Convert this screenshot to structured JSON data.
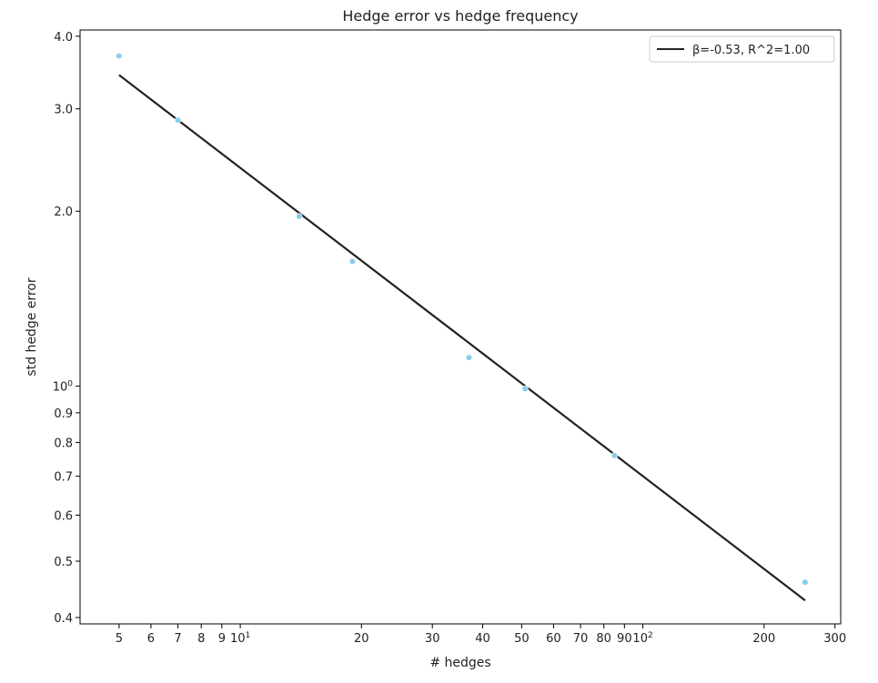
{
  "chart_data": {
    "type": "scatter",
    "title": "Hedge error vs hedge frequency",
    "xlabel": "# hedges",
    "ylabel": "std hedge error",
    "xscale": "log",
    "yscale": "log",
    "xlim": [
      4,
      310
    ],
    "ylim": [
      0.39,
      4.1
    ],
    "grid": false,
    "legend_position": "top-right",
    "x_ticks": [
      {
        "value": 5,
        "label": "5"
      },
      {
        "value": 6,
        "label": "6"
      },
      {
        "value": 7,
        "label": "7"
      },
      {
        "value": 8,
        "label": "8"
      },
      {
        "value": 9,
        "label": "9"
      },
      {
        "value": 10,
        "label": "10",
        "base": "10",
        "exp": "1"
      },
      {
        "value": 20,
        "label": "20"
      },
      {
        "value": 30,
        "label": "30"
      },
      {
        "value": 40,
        "label": "40"
      },
      {
        "value": 50,
        "label": "50"
      },
      {
        "value": 60,
        "label": "60"
      },
      {
        "value": 70,
        "label": "70"
      },
      {
        "value": 80,
        "label": "80"
      },
      {
        "value": 90,
        "label": "90"
      },
      {
        "value": 100,
        "label": "100",
        "base": "10",
        "exp": "2"
      },
      {
        "value": 200,
        "label": "200"
      },
      {
        "value": 300,
        "label": "300"
      }
    ],
    "y_ticks": [
      {
        "value": 0.4,
        "label": "0.4"
      },
      {
        "value": 0.5,
        "label": "0.5"
      },
      {
        "value": 0.6,
        "label": "0.6"
      },
      {
        "value": 0.7,
        "label": "0.7"
      },
      {
        "value": 0.8,
        "label": "0.8"
      },
      {
        "value": 0.9,
        "label": "0.9"
      },
      {
        "value": 1.0,
        "label": "1",
        "base": "10",
        "exp": "0"
      },
      {
        "value": 2.0,
        "label": "2.0"
      },
      {
        "value": 3.0,
        "label": "3.0"
      },
      {
        "value": 4.0,
        "label": "4.0"
      }
    ],
    "series": [
      {
        "type": "scatter",
        "color": "#87CEEB",
        "x": [
          5,
          7,
          14,
          19,
          37,
          51,
          85,
          253
        ],
        "y": [
          3.7,
          2.87,
          1.96,
          1.64,
          1.12,
          0.99,
          0.76,
          0.46
        ]
      },
      {
        "name": "β=-0.53, R^2=1.00",
        "type": "line",
        "color": "#222222",
        "x": [
          5,
          253
        ],
        "y": [
          3.43,
          0.428
        ]
      }
    ]
  }
}
